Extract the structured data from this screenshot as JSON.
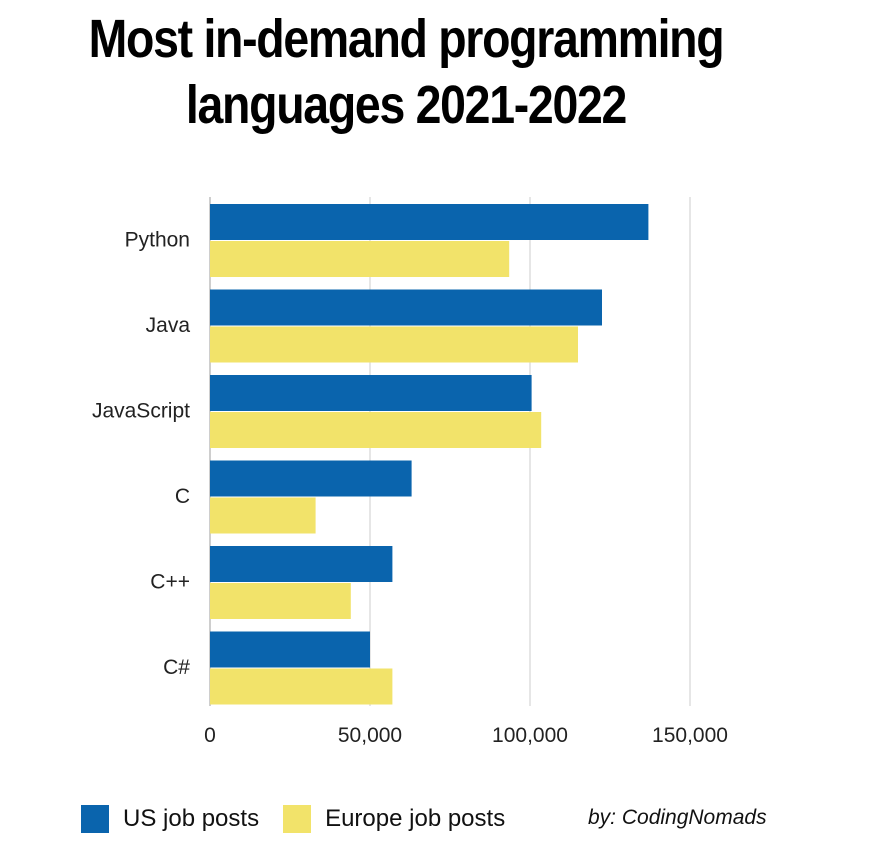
{
  "chart_data": {
    "type": "bar",
    "orientation": "horizontal",
    "title": [
      "Most in-demand programming",
      "languages 2021-2022"
    ],
    "categories": [
      "Python",
      "Java",
      "JavaScript",
      "C",
      "C++",
      "C#"
    ],
    "series": [
      {
        "name": "US job posts",
        "color": "#0a64ad",
        "values": [
          137000,
          122500,
          100500,
          63000,
          57000,
          50000
        ]
      },
      {
        "name": "Europe job posts",
        "color": "#f2e36a",
        "values": [
          93500,
          115000,
          103500,
          33000,
          44000,
          57000
        ]
      }
    ],
    "xlim": [
      0,
      150000
    ],
    "xticks": [
      0,
      50000,
      100000,
      150000
    ],
    "xtick_labels": [
      "0",
      "50,000",
      "100,000",
      "150,000"
    ],
    "grid": "vertical",
    "legend_position": "bottom-left",
    "credit": "by: CodingNomads"
  }
}
